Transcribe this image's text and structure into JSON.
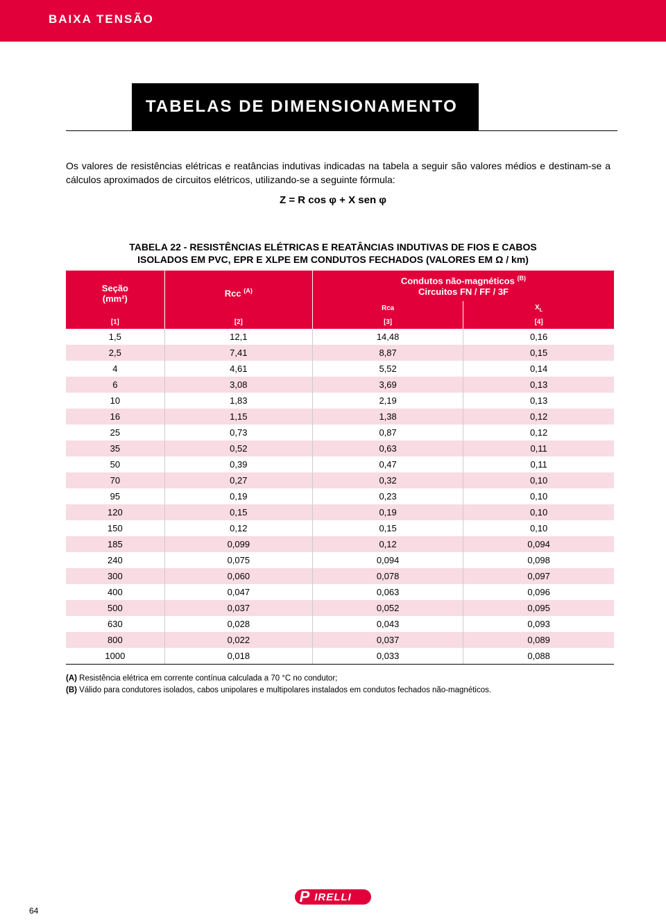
{
  "header": {
    "section_label": "BAIXA TENSÃO"
  },
  "title": "TABELAS DE DIMENSIONAMENTO",
  "intro_text": "Os valores de resistências elétricas e reatâncias indutivas indicadas na tabela a seguir são valores médios e destinam-se a cálculos aproximados de circuitos elétricos, utilizando-se a seguinte fórmula:",
  "formula": "Z = R cos φ + X sen φ",
  "table": {
    "title_line1": "TABELA 22 - RESISTÊNCIAS ELÉTRICAS E REATÂNCIAS INDUTIVAS DE FIOS E CABOS",
    "title_line2": "ISOLADOS EM PVC, EPR E XLPE EM CONDUTOS FECHADOS (VALORES EM Ω / km)",
    "col_header_secao_line1": "Seção",
    "col_header_secao_line2": "(mm²)",
    "col_header_rcc": "Rcc ",
    "col_header_rcc_sup": "(A)",
    "col_header_group_line1": "Condutos não-magnéticos ",
    "col_header_group_sup": "(B)",
    "col_header_group_line2": "Circuitos FN / FF / 3F",
    "col_sub_rca": "Rca",
    "col_sub_xl_main": "X",
    "col_sub_xl_sub": "L",
    "idx1": "[1]",
    "idx2": "[2]",
    "idx3": "[3]",
    "idx4": "[4]",
    "colors": {
      "header_bg": "#e2003b",
      "header_fg": "#ffffff",
      "row_stripe_bg": "#f8dbe3",
      "row_plain_bg": "#ffffff",
      "cell_border": "#cccccc",
      "bottom_border": "#000000"
    },
    "column_widths_pct": [
      18,
      27,
      27.5,
      27.5
    ],
    "rows": [
      {
        "secao": "1,5",
        "rcc": "12,1",
        "rca": "14,48",
        "xl": "0,16"
      },
      {
        "secao": "2,5",
        "rcc": "7,41",
        "rca": "8,87",
        "xl": "0,15"
      },
      {
        "secao": "4",
        "rcc": "4,61",
        "rca": "5,52",
        "xl": "0,14"
      },
      {
        "secao": "6",
        "rcc": "3,08",
        "rca": "3,69",
        "xl": "0,13"
      },
      {
        "secao": "10",
        "rcc": "1,83",
        "rca": "2,19",
        "xl": "0,13"
      },
      {
        "secao": "16",
        "rcc": "1,15",
        "rca": "1,38",
        "xl": "0,12"
      },
      {
        "secao": "25",
        "rcc": "0,73",
        "rca": "0,87",
        "xl": "0,12"
      },
      {
        "secao": "35",
        "rcc": "0,52",
        "rca": "0,63",
        "xl": "0,11"
      },
      {
        "secao": "50",
        "rcc": "0,39",
        "rca": "0,47",
        "xl": "0,11"
      },
      {
        "secao": "70",
        "rcc": "0,27",
        "rca": "0,32",
        "xl": "0,10"
      },
      {
        "secao": "95",
        "rcc": "0,19",
        "rca": "0,23",
        "xl": "0,10"
      },
      {
        "secao": "120",
        "rcc": "0,15",
        "rca": "0,19",
        "xl": "0,10"
      },
      {
        "secao": "150",
        "rcc": "0,12",
        "rca": "0,15",
        "xl": "0,10"
      },
      {
        "secao": "185",
        "rcc": "0,099",
        "rca": "0,12",
        "xl": "0,094"
      },
      {
        "secao": "240",
        "rcc": "0,075",
        "rca": "0,094",
        "xl": "0,098"
      },
      {
        "secao": "300",
        "rcc": "0,060",
        "rca": "0,078",
        "xl": "0,097"
      },
      {
        "secao": "400",
        "rcc": "0,047",
        "rca": "0,063",
        "xl": "0,096"
      },
      {
        "secao": "500",
        "rcc": "0,037",
        "rca": "0,052",
        "xl": "0,095"
      },
      {
        "secao": "630",
        "rcc": "0,028",
        "rca": "0,043",
        "xl": "0,093"
      },
      {
        "secao": "800",
        "rcc": "0,022",
        "rca": "0,037",
        "xl": "0,089"
      },
      {
        "secao": "1000",
        "rcc": "0,018",
        "rca": "0,033",
        "xl": "0,088"
      }
    ]
  },
  "notes": {
    "a_label": "(A)",
    "a_text": "Resistência elétrica em corrente contínua calculada a 70 °C no condutor;",
    "b_label": "(B)",
    "b_text": "Válido para condutores isolados, cabos unipolares e multipolares instalados em condutos fechados não-magnéticos."
  },
  "footer": {
    "page_number": "64",
    "logo_color": "#e2003b",
    "logo_letter_color": "#ffffff"
  }
}
